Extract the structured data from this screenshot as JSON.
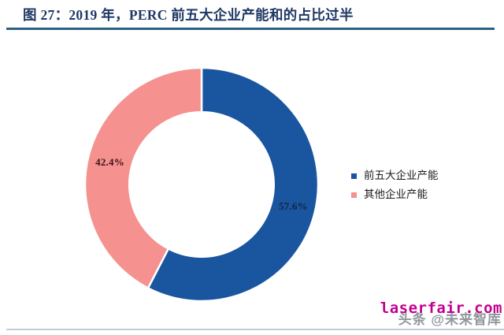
{
  "chart_data": {
    "type": "pie",
    "subtype": "donut",
    "title": "图 27：2019 年，PERC 前五大企业产能和的占比过半",
    "categories": [
      "前五大企业产能",
      "其他企业产能"
    ],
    "values": [
      57.6,
      42.4
    ],
    "data_labels": [
      "57.6%",
      "42.4%"
    ],
    "colors": [
      "#1A55A0",
      "#F5918E"
    ],
    "label_colors": [
      "#10253F",
      "#3B1216"
    ],
    "start_angle_deg": 0,
    "direction": "clockwise",
    "inner_radius_ratio": 0.62,
    "legend_position": "right",
    "grid": false
  },
  "watermarks": {
    "site": "laserfair.com",
    "site_color": "#C2008F",
    "byline": "头条 @未来智库",
    "byline_color": "#8F979B"
  },
  "style": {
    "title_color": "#1F3864",
    "rule_color": "#2E5F82"
  }
}
